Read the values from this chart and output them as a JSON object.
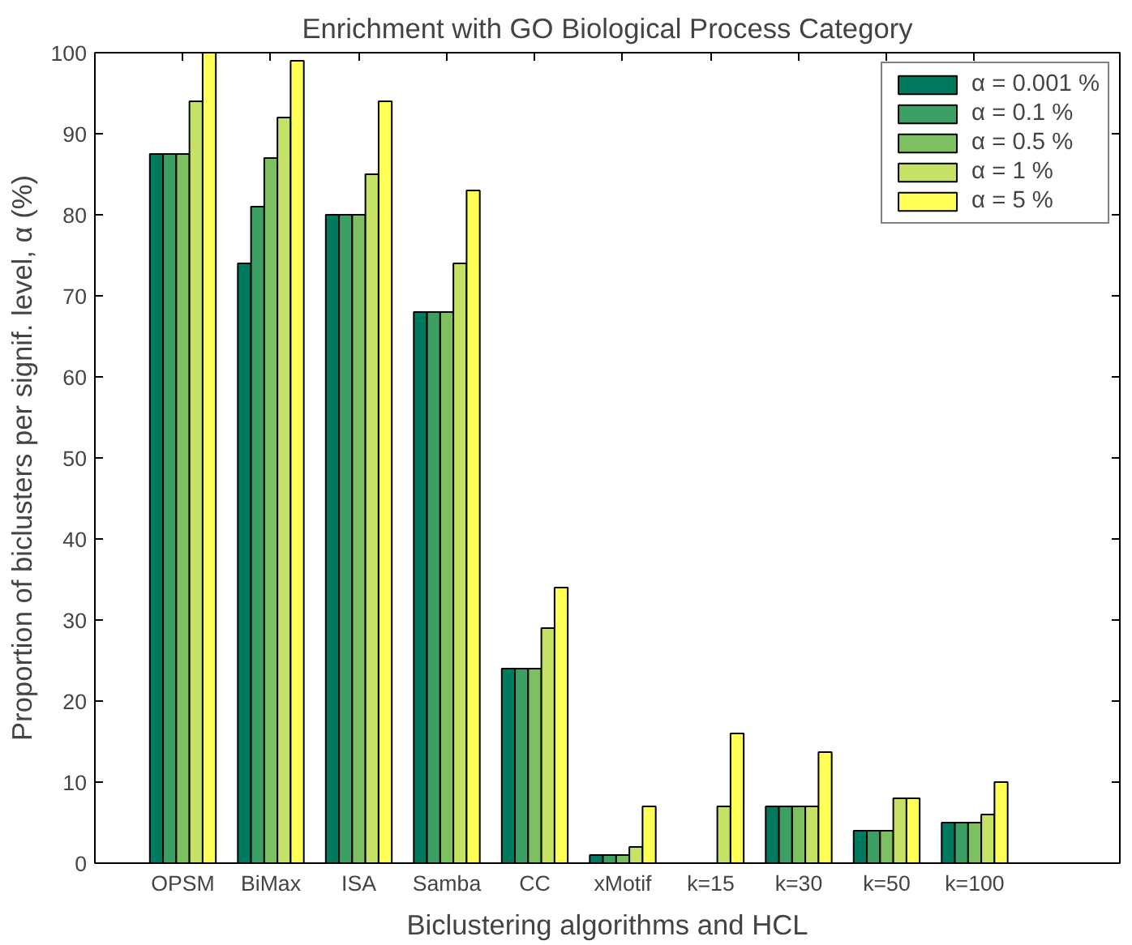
{
  "chart_data": {
    "type": "bar",
    "title": "Enrichment with GO Biological Process Category",
    "xlabel": "Biclustering algorithms and HCL",
    "ylabel": "Proportion of biclusters per signif. level, α (%)",
    "categories": [
      "OPSM",
      "BiMax",
      "ISA",
      "Samba",
      "CC",
      "xMotif",
      "k=15",
      "k=30",
      "k=50",
      "k=100"
    ],
    "series": [
      {
        "name": "α = 0.001 %",
        "color": "#007a5e",
        "values": [
          87.5,
          74,
          80,
          68,
          24,
          1,
          0,
          7,
          4,
          5
        ]
      },
      {
        "name": "α = 0.1 %",
        "color": "#3ca064",
        "values": [
          87.5,
          81,
          80,
          68,
          24,
          1,
          0,
          7,
          4,
          5
        ]
      },
      {
        "name": "α = 0.5 %",
        "color": "#7cc062",
        "values": [
          87.5,
          87,
          80,
          68,
          24,
          1,
          0,
          7,
          4,
          5
        ]
      },
      {
        "name": "α = 1 %",
        "color": "#c6e266",
        "values": [
          94,
          92,
          85,
          74,
          29,
          2,
          7,
          7,
          8,
          6
        ]
      },
      {
        "name": "α = 5 %",
        "color": "#ffff55",
        "values": [
          100,
          99,
          94,
          83,
          34,
          7,
          16,
          13.7,
          8,
          10
        ]
      }
    ],
    "ylim": [
      0,
      100
    ],
    "yticks": [
      0,
      10,
      20,
      30,
      40,
      50,
      60,
      70,
      80,
      90,
      100
    ],
    "grid": false,
    "legend": "top right"
  }
}
